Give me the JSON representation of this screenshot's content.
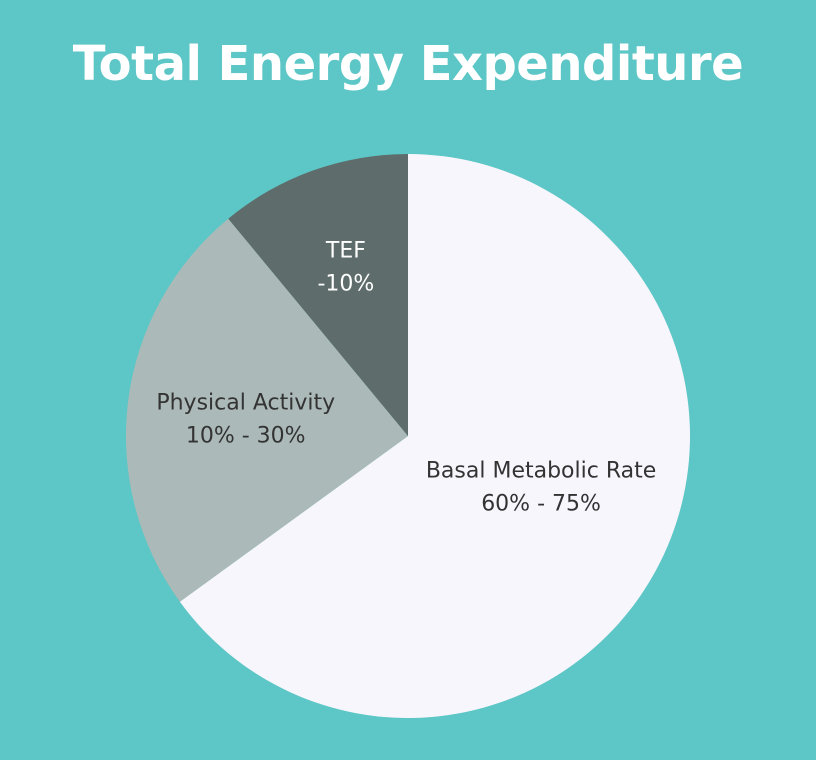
{
  "chart_data": {
    "type": "pie",
    "title": "Total Energy Expenditure",
    "slices": [
      {
        "label": "Basal Metabolic Rate",
        "value_text": "60% - 75%",
        "value": 65,
        "color": "#f8f6fd",
        "text_color": "#333333"
      },
      {
        "label": "Physical Activity",
        "value_text": "10% - 30%",
        "value": 24,
        "color": "#abbab8",
        "text_color": "#333333"
      },
      {
        "label": "TEF",
        "value_text": "-10%",
        "value": 11,
        "color": "#5e6d6b",
        "text_color": "#ffffff"
      }
    ]
  }
}
